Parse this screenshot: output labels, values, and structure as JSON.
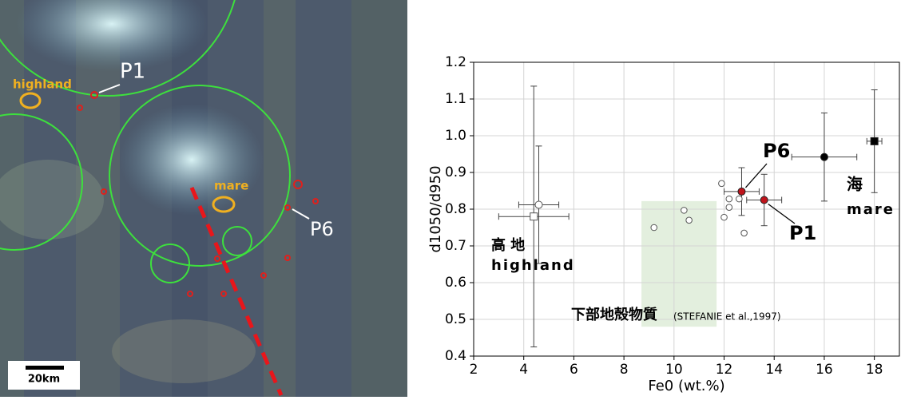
{
  "image": {
    "labels": {
      "highland": "highland",
      "mare": "mare",
      "p1": "P1",
      "p6": "P6",
      "scale": "20km"
    }
  },
  "chart_data": {
    "type": "scatter",
    "x_label": "Fe0 (wt.%)",
    "y_label": "d1050/d950",
    "xlim": [
      2,
      19
    ],
    "ylim": [
      0.4,
      1.2
    ],
    "xticks": [
      2,
      4,
      6,
      8,
      10,
      12,
      14,
      16,
      18
    ],
    "yticks": [
      0.4,
      0.5,
      0.6,
      0.7,
      0.8,
      0.9,
      {
        "value": 1,
        "label": "1.0"
      },
      1.1,
      1.2
    ],
    "grid": true,
    "shaded_region": {
      "xlim": [
        8.7,
        11.7
      ],
      "ylim": [
        0.48,
        0.822
      ],
      "color": "#dcebd6"
    },
    "series": [
      {
        "marker": "circle",
        "color": "#555555",
        "filled": false,
        "x": [
          4.6
        ],
        "values": [
          0.812
        ],
        "xerr": [
          0.8
        ],
        "yerr": [
          0.16
        ]
      },
      {
        "marker": "square",
        "color": "#555555",
        "filled": false,
        "x": [
          4.4
        ],
        "values": [
          0.78
        ],
        "xerr": [
          1.4
        ],
        "yerr": [
          0.355
        ]
      },
      {
        "marker": "circle",
        "color": "#c0141c",
        "filled": true,
        "x": [
          12.7,
          13.6
        ],
        "values": [
          0.848,
          0.825
        ],
        "xerr": [
          0.7,
          0.7
        ],
        "yerr": [
          0.065,
          0.07
        ]
      },
      {
        "marker": "circle",
        "color": "#000000",
        "filled": true,
        "x": [
          16.0
        ],
        "values": [
          0.942
        ],
        "xerr": [
          1.3
        ],
        "yerr": [
          0.12
        ]
      },
      {
        "marker": "square",
        "color": "#000000",
        "filled": true,
        "x": [
          18.0
        ],
        "values": [
          0.985
        ],
        "xerr": [
          0.3
        ],
        "yerr": [
          0.14
        ]
      },
      {
        "marker": "circle",
        "color": "#555555",
        "filled": false,
        "x": [
          9.2,
          10.4,
          10.6,
          11.9,
          12.0,
          12.2,
          12.2,
          12.6,
          12.8
        ],
        "values": [
          0.75,
          0.797,
          0.77,
          0.87,
          0.778,
          0.828,
          0.805,
          0.828,
          0.735
        ]
      }
    ],
    "annotations": [
      "P6",
      "P1",
      "海",
      "mare",
      "高 地",
      "highland",
      "下部地殻物質",
      "(STEFANIE et al.,1997)"
    ]
  }
}
